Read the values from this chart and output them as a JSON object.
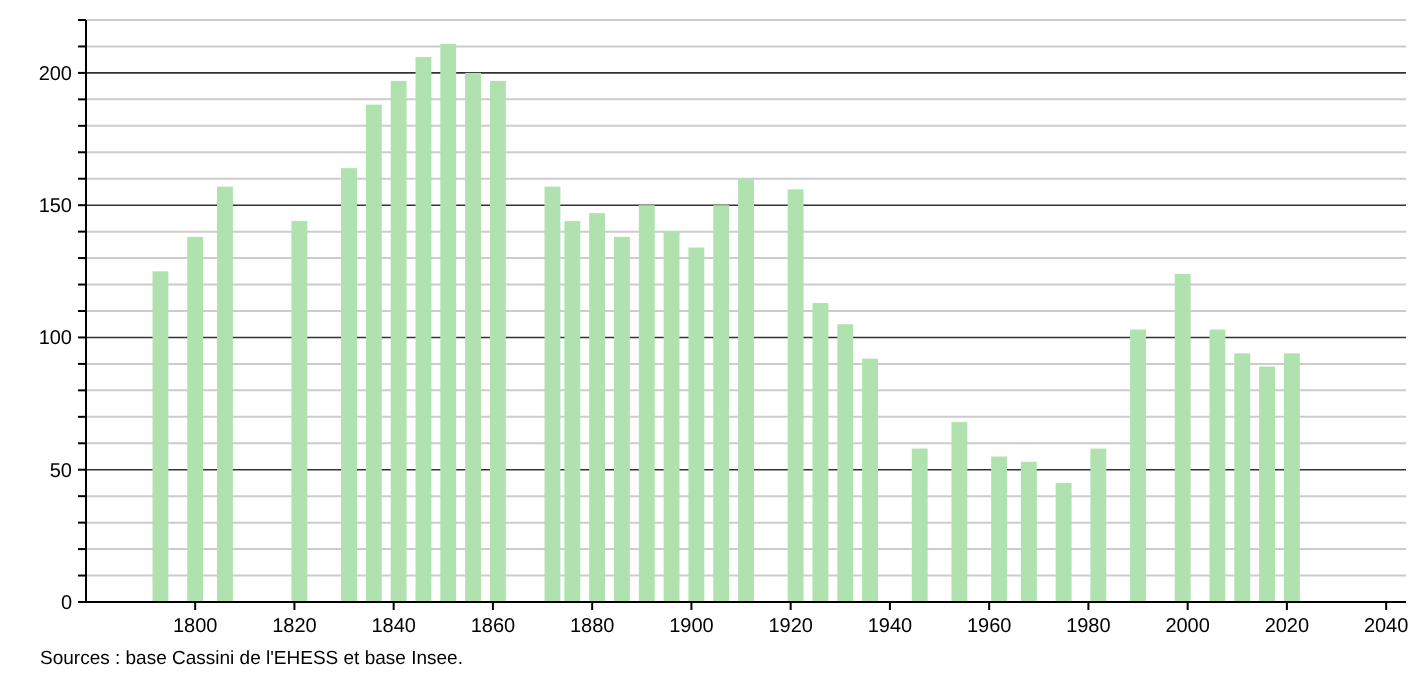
{
  "chart_data": {
    "type": "bar",
    "x": [
      1793,
      1800,
      1806,
      1821,
      1831,
      1836,
      1841,
      1846,
      1851,
      1856,
      1861,
      1872,
      1876,
      1881,
      1886,
      1891,
      1896,
      1901,
      1906,
      1911,
      1921,
      1926,
      1931,
      1936,
      1946,
      1954,
      1962,
      1968,
      1975,
      1982,
      1990,
      1999,
      2006,
      2011,
      2016,
      2021
    ],
    "values": [
      125,
      138,
      157,
      144,
      164,
      188,
      197,
      206,
      211,
      200,
      197,
      157,
      144,
      147,
      138,
      150,
      140,
      134,
      150,
      160,
      156,
      113,
      105,
      92,
      58,
      68,
      55,
      53,
      45,
      58,
      103,
      124,
      103,
      94,
      89,
      94
    ],
    "color": "#b0e2b0",
    "xlim": [
      1778,
      2044
    ],
    "xticks": [
      1800,
      1820,
      1840,
      1860,
      1880,
      1900,
      1920,
      1940,
      1960,
      1980,
      2000,
      2020,
      2040
    ],
    "ylim": [
      0,
      220
    ],
    "yticks": [
      0,
      {
        "value": 10,
        "label": null
      },
      {
        "value": 20,
        "label": null
      },
      {
        "value": 30,
        "label": null
      },
      {
        "value": 40,
        "label": null
      },
      50,
      {
        "value": 60,
        "label": null
      },
      {
        "value": 70,
        "label": null
      },
      {
        "value": 80,
        "label": null
      },
      {
        "value": 90,
        "label": null
      },
      100,
      {
        "value": 110,
        "label": null
      },
      {
        "value": 120,
        "label": null
      },
      {
        "value": 130,
        "label": null
      },
      {
        "value": 140,
        "label": null
      },
      150,
      {
        "value": 160,
        "label": null
      },
      {
        "value": 170,
        "label": null
      },
      {
        "value": 180,
        "label": null
      },
      {
        "value": 190,
        "label": null
      },
      200,
      {
        "value": 210,
        "label": null
      },
      {
        "value": 220,
        "label": null
      }
    ],
    "grid": true,
    "annotations": [
      "Sources : base Cassini de l'EHESS et base Insee."
    ]
  }
}
